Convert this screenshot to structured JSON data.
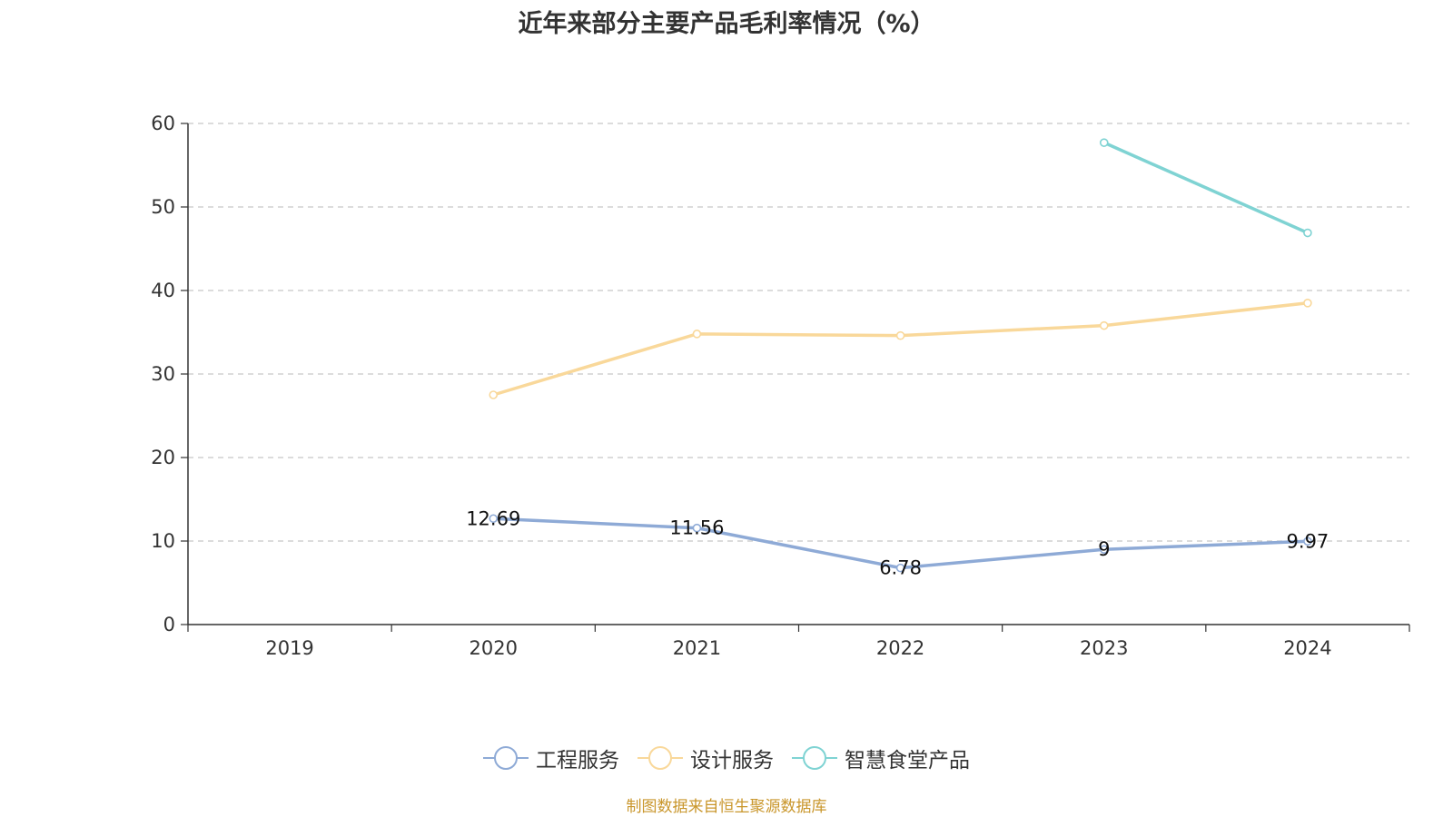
{
  "chart_data": {
    "type": "line",
    "title": "近年来部分主要产品毛利率情况（%）",
    "categories": [
      "2019",
      "2020",
      "2021",
      "2022",
      "2023",
      "2024"
    ],
    "ylim": [
      0,
      60
    ],
    "yticks": [
      0,
      10,
      20,
      30,
      40,
      50,
      60
    ],
    "grid": true,
    "legend_position": "bottom",
    "series": [
      {
        "name": "工程服务",
        "color": "#8eaad6",
        "values": [
          null,
          12.69,
          11.56,
          6.78,
          9,
          9.97
        ],
        "labels": [
          "",
          "12.69",
          "11.56",
          "6.78",
          "9",
          "9.97"
        ]
      },
      {
        "name": "设计服务",
        "color": "#f9d89a",
        "values": [
          null,
          27.5,
          34.8,
          34.6,
          35.8,
          38.5
        ],
        "labels": [
          "",
          "",
          "",
          "",
          "",
          ""
        ]
      },
      {
        "name": "智慧食堂产品",
        "color": "#7fd3d3",
        "values": [
          null,
          null,
          null,
          null,
          57.7,
          46.9
        ],
        "labels": [
          "",
          "",
          "",
          "",
          "",
          ""
        ]
      }
    ]
  },
  "source_note": "制图数据来自恒生聚源数据库"
}
